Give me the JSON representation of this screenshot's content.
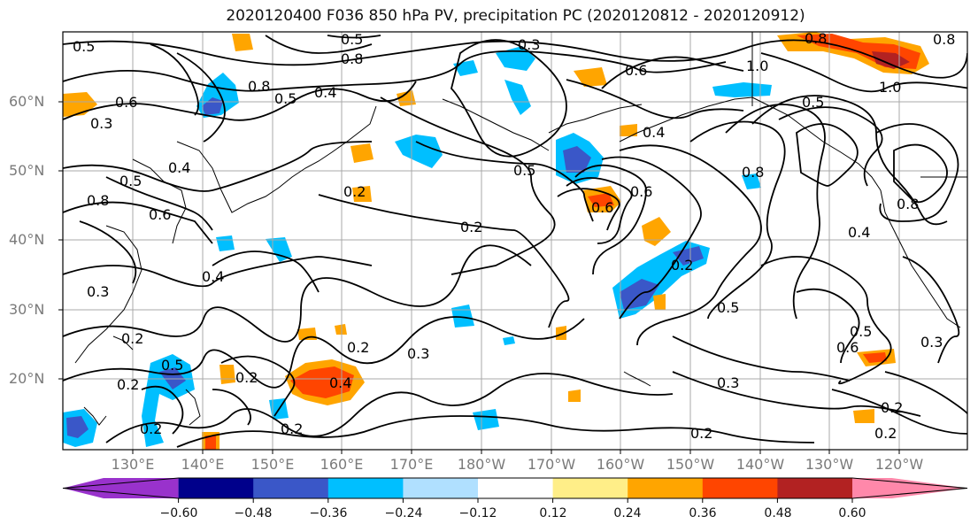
{
  "title": "2020120400 F036 850 hPa PV, precipitation PC (2020120812 - 2020120912)",
  "latitude_labels": [
    "60°N",
    "50°N",
    "40°N",
    "30°N",
    "20°N"
  ],
  "longitude_labels": [
    "130°E",
    "140°E",
    "150°E",
    "160°E",
    "170°E",
    "180°W",
    "170°W",
    "160°W",
    "150°W",
    "140°W",
    "130°W",
    "120°W"
  ],
  "colorbar": {
    "colors": [
      "#9932cc",
      "#00008b",
      "#3a57c8",
      "#00bfff",
      "#b0e0ff",
      "#ffffff",
      "#ffee88",
      "#ffa500",
      "#ff4500",
      "#b22222",
      "#ff88aa"
    ],
    "tick_labels": [
      "−0.60",
      "−0.48",
      "−0.36",
      "−0.24",
      "−0.12",
      "0.12",
      "0.24",
      "0.36",
      "0.48",
      "0.60"
    ]
  },
  "contour_labels": [
    "0.2",
    "0.3",
    "0.4",
    "0.5",
    "0.6",
    "0.8",
    "1.0"
  ]
}
